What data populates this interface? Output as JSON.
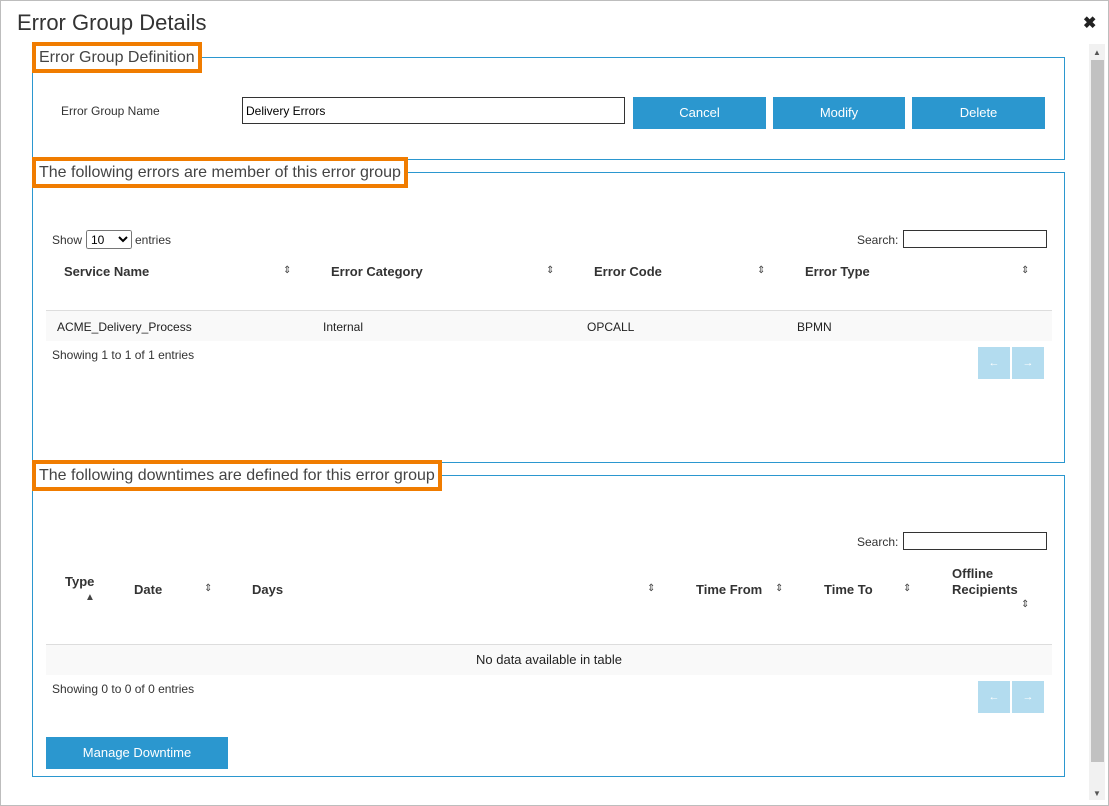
{
  "dialog": {
    "title": "Error Group Details",
    "close_icon": "close-icon"
  },
  "definition": {
    "legend": "Error Group Definition",
    "name_label": "Error Group Name",
    "name_value": "Delivery Errors",
    "cancel": "Cancel",
    "modify": "Modify",
    "delete": "Delete"
  },
  "members": {
    "legend": "The following errors are member of this error group",
    "show": "Show",
    "page_size": "10",
    "entries": "entries",
    "search_label": "Search:",
    "columns": [
      "Service Name",
      "Error Category",
      "Error Code",
      "Error Type"
    ],
    "rows": [
      [
        "ACME_Delivery_Process",
        "Internal",
        "OPCALL",
        "BPMN"
      ]
    ],
    "info": "Showing 1 to 1 of 1 entries",
    "prev": "←",
    "next": "→"
  },
  "downtimes": {
    "legend": "The following downtimes are defined for this error group",
    "search_label": "Search:",
    "columns": [
      "Type",
      "Date",
      "Days",
      "Time From",
      "Time To",
      "Offline",
      "Recipients"
    ],
    "empty": "No data available in table",
    "info": "Showing 0 to 0 of 0 entries",
    "prev": "←",
    "next": "→",
    "manage": "Manage Downtime"
  },
  "colors": {
    "accent": "#2b97cf",
    "highlight": "#f07c00",
    "pager": "#b3dcef"
  }
}
